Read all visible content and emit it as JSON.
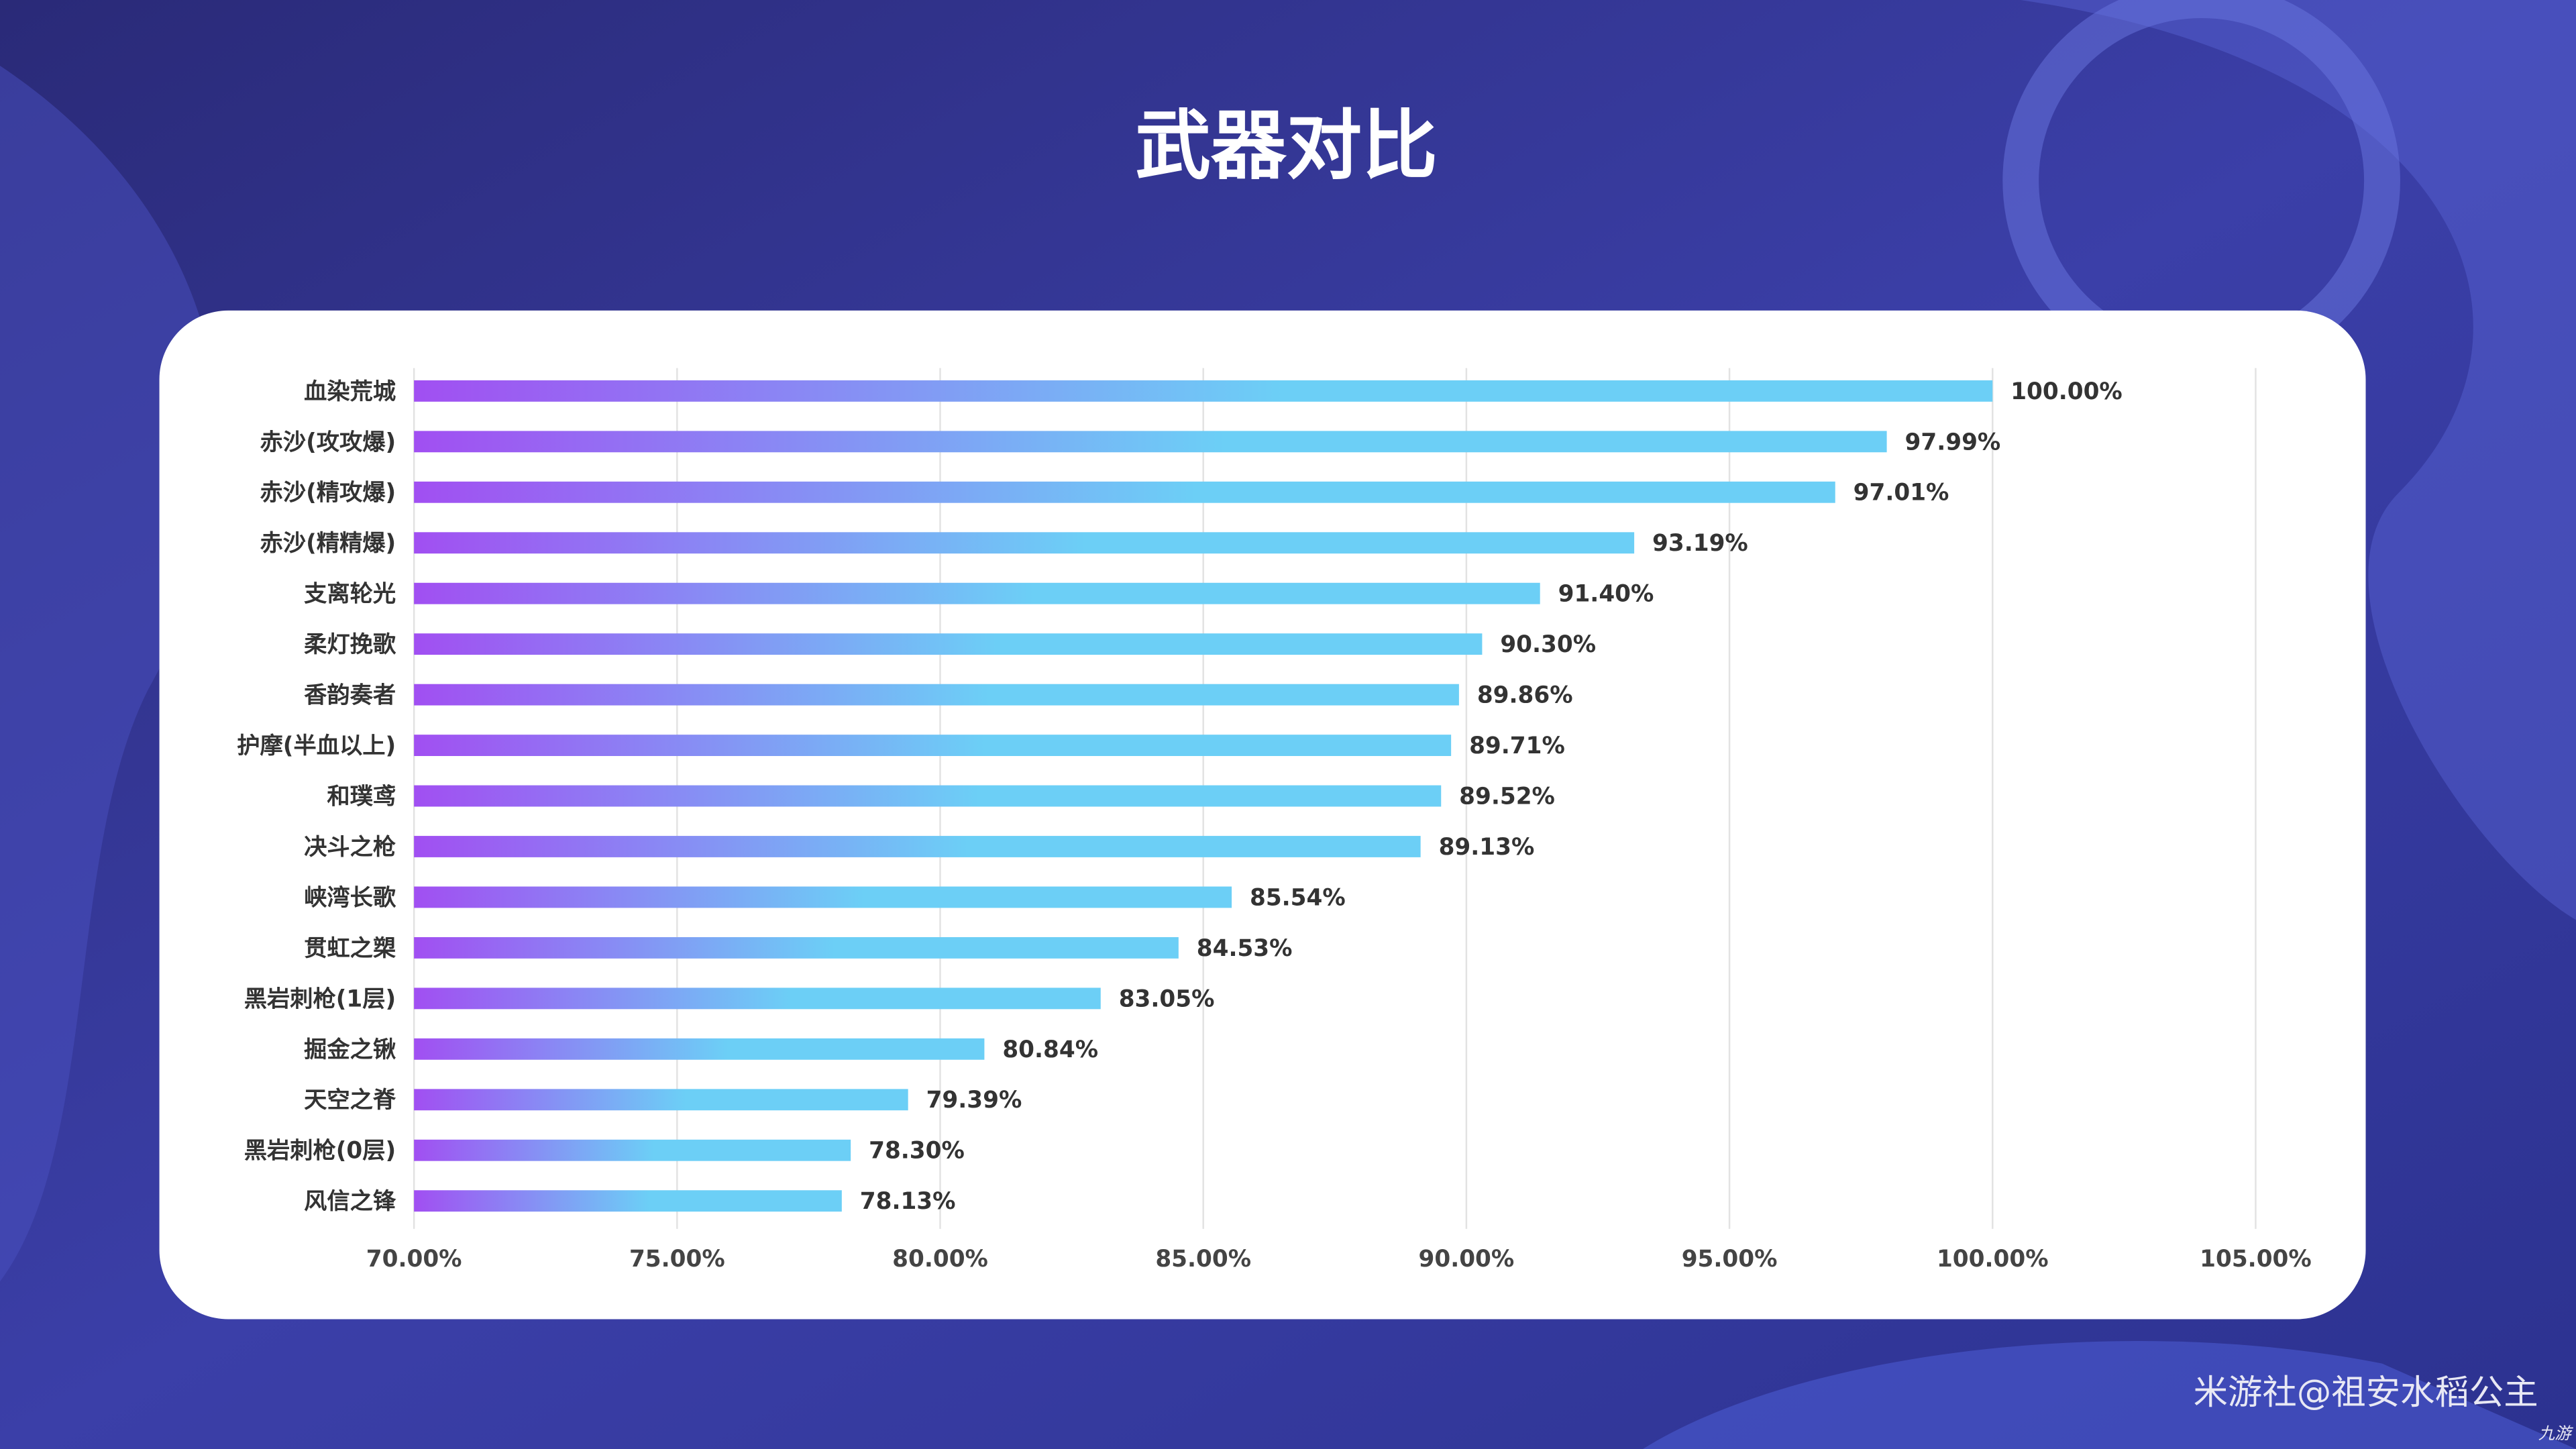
{
  "chart_data": {
    "type": "bar",
    "orientation": "horizontal",
    "title": "武器对比",
    "categories": [
      "血染荒城",
      "赤沙(攻攻爆)",
      "赤沙(精攻爆)",
      "赤沙(精精爆)",
      "支离轮光",
      "柔灯挽歌",
      "香韵奏者",
      "护摩(半血以上)",
      "和璞鸢",
      "决斗之枪",
      "峡湾长歌",
      "贯虹之槊",
      "黑岩刺枪(1层)",
      "掘金之锹",
      "天空之脊",
      "黑岩刺枪(0层)",
      "风信之锋"
    ],
    "values": [
      100.0,
      97.99,
      97.01,
      93.19,
      91.4,
      90.3,
      89.86,
      89.71,
      89.52,
      89.13,
      85.54,
      84.53,
      83.05,
      80.84,
      79.39,
      78.3,
      78.13
    ],
    "value_labels": [
      "100.00%",
      "97.99%",
      "97.01%",
      "93.19%",
      "91.40%",
      "90.30%",
      "89.86%",
      "89.71%",
      "89.52%",
      "89.13%",
      "85.54%",
      "84.53%",
      "83.05%",
      "80.84%",
      "79.39%",
      "78.30%",
      "78.13%"
    ],
    "color": [
      "#a14ff2",
      "#6ccff6"
    ],
    "xlim": [
      70,
      105
    ],
    "xticks": [
      {
        "value": 70,
        "label": "70.00%"
      },
      {
        "value": 75,
        "label": "75.00%"
      },
      {
        "value": 80,
        "label": "80.00%"
      },
      {
        "value": 85,
        "label": "85.00%"
      },
      {
        "value": 90,
        "label": "90.00%"
      },
      {
        "value": 95,
        "label": "95.00%"
      },
      {
        "value": 100,
        "label": "100.00%"
      },
      {
        "value": 105,
        "label": "105.00%"
      }
    ],
    "grid": true
  },
  "watermark": "米游社@祖安水稻公主",
  "logo": "九游"
}
